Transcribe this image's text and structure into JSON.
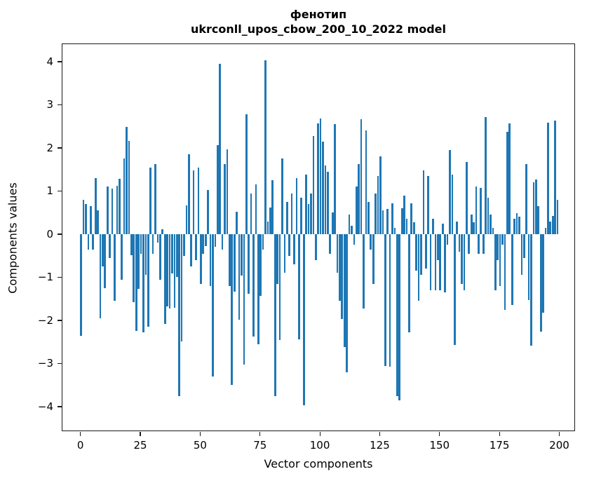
{
  "figure": {
    "title_line1": "фенотип",
    "title_line2": "ukrconll_upos_cbow_200_10_2022 model"
  },
  "chart_data": {
    "type": "bar",
    "title": "фенотип — ukrconll_upos_cbow_200_10_2022 model",
    "xlabel": "Vector components",
    "ylabel": "Components values",
    "xlim": [
      -8,
      207
    ],
    "ylim": [
      -4.5,
      4.4
    ],
    "grid": false,
    "legend": "none",
    "bar_color": "#1f77b4",
    "x_tick_values": [
      0,
      25,
      50,
      75,
      100,
      125,
      150,
      175,
      200
    ],
    "x_tick_labels": [
      "0",
      "25",
      "50",
      "75",
      "100",
      "125",
      "150",
      "175",
      "200"
    ],
    "y_tick_values": [
      4,
      3,
      2,
      1,
      0,
      -1,
      -2,
      -3,
      -4
    ],
    "y_tick_labels": [
      "4",
      "3",
      "2",
      "1",
      "0",
      "−1",
      "−2",
      "−3",
      "−4"
    ],
    "values": [
      -2.35,
      0.8,
      0.7,
      -0.35,
      0.65,
      -0.35,
      1.3,
      0.55,
      -1.95,
      -0.75,
      -1.25,
      1.1,
      -0.55,
      1.05,
      -1.54,
      1.13,
      1.28,
      -1.05,
      1.75,
      2.48,
      2.17,
      -0.48,
      -1.57,
      -2.24,
      -1.27,
      -0.46,
      -2.27,
      -0.95,
      -2.15,
      1.55,
      -0.46,
      1.63,
      -0.2,
      -1.05,
      0.12,
      -2.08,
      -1.67,
      -1.72,
      -0.91,
      -1.7,
      -0.99,
      -3.76,
      -2.48,
      -0.5,
      0.66,
      1.85,
      -0.75,
      1.48,
      -0.6,
      1.55,
      -1.15,
      -0.46,
      -0.28,
      1.02,
      -1.21,
      -3.3,
      -0.3,
      2.07,
      3.95,
      -0.35,
      1.62,
      1.96,
      -1.2,
      -3.5,
      -1.33,
      0.52,
      -1.98,
      -0.96,
      -3.02,
      2.78,
      -1.38,
      0.95,
      -2.38,
      1.15,
      -2.55,
      -1.43,
      -0.35,
      4.03,
      0.3,
      0.62,
      1.25,
      -3.75,
      -1.15,
      -2.45,
      1.75,
      -0.9,
      0.75,
      -0.5,
      0.95,
      -0.7,
      1.3,
      -2.44,
      0.85,
      -3.97,
      1.38,
      0.7,
      0.95,
      2.28,
      -0.6,
      2.57,
      2.69,
      2.15,
      1.6,
      1.45,
      -0.45,
      0.5,
      2.55,
      -0.9,
      -1.55,
      -1.97,
      -2.62,
      -3.2,
      0.45,
      0.2,
      -0.25,
      1.1,
      1.62,
      2.67,
      -1.72,
      2.41,
      0.75,
      -0.35,
      -1.15,
      0.95,
      1.35,
      1.8,
      0.55,
      -3.05,
      0.58,
      -3.08,
      0.72,
      0.15,
      -3.75,
      -3.85,
      0.6,
      0.89,
      0.35,
      -2.28,
      0.72,
      0.28,
      -0.85,
      -1.55,
      -0.95,
      1.48,
      -0.8,
      1.35,
      -1.3,
      0.35,
      -1.3,
      -0.6,
      -1.3,
      0.25,
      -1.35,
      -0.25,
      1.95,
      1.38,
      -2.57,
      0.3,
      -0.4,
      -1.15,
      -1.3,
      1.68,
      -0.45,
      0.45,
      0.28,
      1.1,
      -0.45,
      1.08,
      -0.45,
      2.72,
      0.85,
      0.45,
      0.15,
      -1.3,
      -0.6,
      -1.2,
      -0.25,
      -1.75,
      2.37,
      2.57,
      -1.65,
      0.35,
      0.48,
      0.4,
      -0.95,
      -0.55,
      1.62,
      -1.53,
      -2.59,
      1.2,
      1.27,
      0.65,
      -2.26,
      -1.82,
      0.15,
      2.59,
      0.3,
      0.42,
      2.64,
      0.8
    ]
  }
}
